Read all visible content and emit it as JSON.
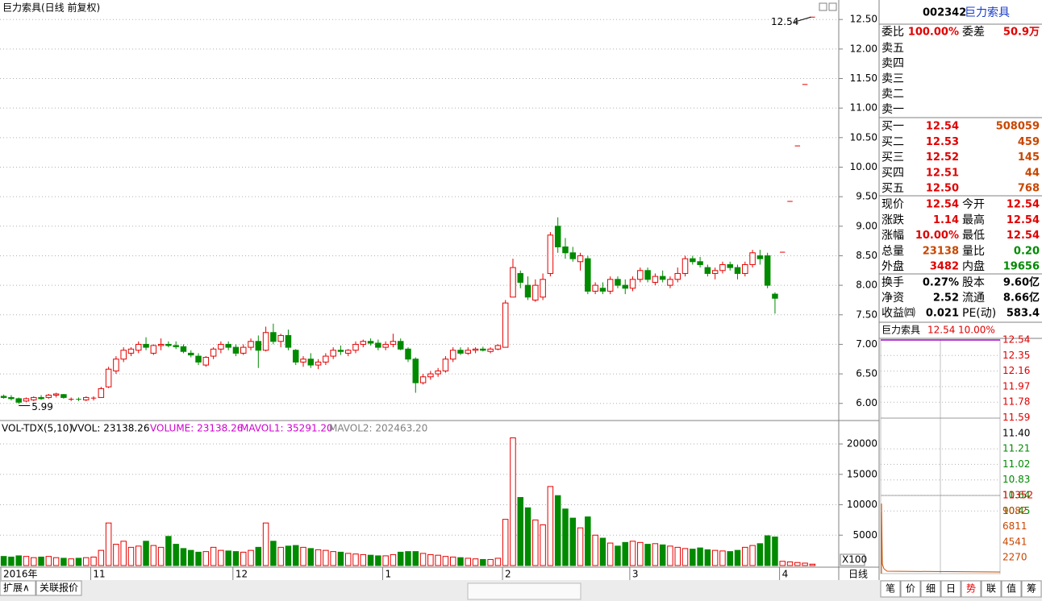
{
  "header": {
    "title": "巨力索具(日线 前复权)"
  },
  "price_chart": {
    "type": "candlestick",
    "up_color": "#e60000",
    "down_color": "#008a00",
    "ylim": [
      5.71,
      12.83
    ],
    "yticks": [
      {
        "value": 6,
        "label": "6.00"
      },
      {
        "value": 6.5,
        "label": "6.50"
      },
      {
        "value": 7,
        "label": "7.00"
      },
      {
        "value": 7.5,
        "label": "7.50"
      },
      {
        "value": 8,
        "label": "8.00"
      },
      {
        "value": 8.5,
        "label": "8.50"
      },
      {
        "value": 9,
        "label": "9.00"
      },
      {
        "value": 9.5,
        "label": "9.50"
      },
      {
        "value": 10,
        "label": "10.00"
      },
      {
        "value": 10.5,
        "label": "10.50"
      },
      {
        "value": 11,
        "label": "11.00"
      },
      {
        "value": 11.5,
        "label": "11.50"
      },
      {
        "value": 12,
        "label": "12.00"
      },
      {
        "value": 12.5,
        "label": "12.50"
      }
    ],
    "grid": true,
    "max_label": "12.54",
    "min_label": "5.99",
    "categories": [
      "2016年",
      null,
      null,
      null,
      null,
      null,
      null,
      null,
      null,
      null,
      null,
      null,
      "11",
      null,
      null,
      null,
      null,
      null,
      null,
      null,
      null,
      null,
      null,
      null,
      null,
      null,
      null,
      null,
      null,
      null,
      null,
      "12",
      null,
      null,
      null,
      null,
      null,
      null,
      null,
      null,
      null,
      null,
      null,
      null,
      null,
      null,
      null,
      null,
      null,
      null,
      null,
      "1",
      null,
      null,
      null,
      null,
      null,
      null,
      null,
      null,
      null,
      null,
      null,
      null,
      null,
      null,
      null,
      "2",
      null,
      null,
      null,
      null,
      null,
      null,
      null,
      null,
      null,
      null,
      null,
      null,
      null,
      null,
      null,
      null,
      "3",
      null,
      null,
      null,
      null,
      null,
      null,
      null,
      null,
      null,
      null,
      null,
      null,
      null,
      null,
      null,
      null,
      null,
      null,
      null,
      "4",
      null,
      null,
      null,
      null
    ],
    "candles": [
      [
        6.12,
        6.15,
        6.08,
        6.1
      ],
      [
        6.1,
        6.14,
        6.05,
        6.08
      ],
      [
        6.08,
        6.1,
        5.99,
        6.02
      ],
      [
        6.04,
        6.1,
        6.02,
        6.08
      ],
      [
        6.06,
        6.12,
        6.04,
        6.1
      ],
      [
        6.1,
        6.14,
        6.06,
        6.08
      ],
      [
        6.1,
        6.16,
        6.08,
        6.14
      ],
      [
        6.14,
        6.18,
        6.1,
        6.16
      ],
      [
        6.15,
        6.16,
        6.08,
        6.1
      ],
      [
        6.06,
        6.1,
        6.04,
        6.07
      ],
      [
        6.07,
        6.1,
        6.04,
        6.06
      ],
      [
        6.06,
        6.12,
        6.04,
        6.1
      ],
      [
        6.08,
        6.12,
        6.05,
        6.09
      ],
      [
        6.1,
        6.28,
        6.1,
        6.25
      ],
      [
        6.28,
        6.62,
        6.26,
        6.58
      ],
      [
        6.55,
        6.8,
        6.5,
        6.75
      ],
      [
        6.75,
        6.95,
        6.7,
        6.9
      ],
      [
        6.85,
        6.95,
        6.8,
        6.92
      ],
      [
        6.9,
        7.05,
        6.85,
        7.0
      ],
      [
        7.0,
        7.12,
        6.9,
        6.95
      ],
      [
        6.85,
        7.0,
        6.82,
        6.98
      ],
      [
        6.98,
        7.1,
        6.9,
        7.0
      ],
      [
        7.0,
        7.05,
        6.95,
        6.98
      ],
      [
        6.98,
        7.05,
        6.92,
        6.96
      ],
      [
        6.96,
        7.0,
        6.85,
        6.88
      ],
      [
        6.85,
        6.9,
        6.78,
        6.82
      ],
      [
        6.8,
        6.85,
        6.65,
        6.7
      ],
      [
        6.65,
        6.8,
        6.62,
        6.78
      ],
      [
        6.8,
        6.95,
        6.75,
        6.92
      ],
      [
        6.92,
        7.05,
        6.85,
        7.0
      ],
      [
        7.0,
        7.05,
        6.9,
        6.95
      ],
      [
        6.95,
        7.0,
        6.8,
        6.85
      ],
      [
        6.85,
        7.0,
        6.82,
        6.95
      ],
      [
        6.95,
        7.1,
        6.9,
        7.05
      ],
      [
        7.05,
        7.15,
        6.6,
        6.9
      ],
      [
        6.9,
        7.3,
        6.88,
        7.2
      ],
      [
        7.2,
        7.35,
        7.0,
        7.05
      ],
      [
        7.05,
        7.18,
        6.95,
        7.15
      ],
      [
        7.15,
        7.25,
        6.9,
        6.95
      ],
      [
        6.9,
        6.92,
        6.65,
        6.7
      ],
      [
        6.7,
        6.8,
        6.62,
        6.75
      ],
      [
        6.75,
        6.85,
        6.6,
        6.65
      ],
      [
        6.65,
        6.75,
        6.58,
        6.7
      ],
      [
        6.7,
        6.85,
        6.65,
        6.8
      ],
      [
        6.8,
        6.95,
        6.75,
        6.9
      ],
      [
        6.9,
        6.98,
        6.82,
        6.88
      ],
      [
        6.85,
        6.92,
        6.8,
        6.9
      ],
      [
        6.9,
        7.05,
        6.85,
        7.0
      ],
      [
        7.0,
        7.08,
        6.95,
        7.05
      ],
      [
        7.05,
        7.1,
        6.98,
        7.02
      ],
      [
        7.02,
        7.08,
        6.9,
        6.95
      ],
      [
        6.95,
        7.05,
        6.9,
        7.0
      ],
      [
        7.0,
        7.18,
        6.95,
        7.05
      ],
      [
        7.05,
        7.1,
        6.9,
        6.92
      ],
      [
        6.92,
        6.95,
        6.7,
        6.75
      ],
      [
        6.75,
        6.78,
        6.18,
        6.35
      ],
      [
        6.35,
        6.5,
        6.32,
        6.45
      ],
      [
        6.45,
        6.55,
        6.4,
        6.5
      ],
      [
        6.5,
        6.6,
        6.45,
        6.55
      ],
      [
        6.55,
        6.8,
        6.52,
        6.75
      ],
      [
        6.75,
        6.95,
        6.7,
        6.9
      ],
      [
        6.9,
        6.95,
        6.82,
        6.85
      ],
      [
        6.85,
        6.95,
        6.82,
        6.9
      ],
      [
        6.9,
        6.95,
        6.85,
        6.92
      ],
      [
        6.92,
        6.96,
        6.88,
        6.9
      ],
      [
        6.88,
        6.95,
        6.85,
        6.92
      ],
      [
        6.92,
        7.0,
        6.9,
        6.98
      ],
      [
        6.95,
        7.75,
        6.95,
        7.7
      ],
      [
        7.8,
        8.45,
        7.8,
        8.3
      ],
      [
        8.2,
        8.25,
        7.95,
        8.05
      ],
      [
        8.0,
        8.15,
        7.75,
        7.8
      ],
      [
        7.75,
        8.1,
        7.72,
        8.0
      ],
      [
        7.8,
        8.2,
        7.75,
        8.1
      ],
      [
        8.2,
        8.9,
        8.15,
        8.85
      ],
      [
        9.0,
        9.15,
        8.55,
        8.65
      ],
      [
        8.65,
        8.8,
        8.45,
        8.55
      ],
      [
        8.55,
        8.65,
        8.4,
        8.45
      ],
      [
        8.4,
        8.55,
        8.25,
        8.5
      ],
      [
        8.45,
        8.5,
        7.85,
        7.9
      ],
      [
        7.9,
        8.05,
        7.85,
        8.0
      ],
      [
        7.95,
        8.05,
        7.85,
        7.9
      ],
      [
        7.9,
        8.15,
        7.85,
        8.1
      ],
      [
        8.1,
        8.15,
        7.95,
        8.0
      ],
      [
        8.0,
        8.1,
        7.85,
        7.95
      ],
      [
        7.95,
        8.15,
        7.9,
        8.1
      ],
      [
        8.1,
        8.3,
        8.05,
        8.25
      ],
      [
        8.25,
        8.3,
        8.05,
        8.1
      ],
      [
        8.05,
        8.2,
        8.0,
        8.15
      ],
      [
        8.15,
        8.25,
        8.05,
        8.1
      ],
      [
        8.0,
        8.15,
        7.95,
        8.1
      ],
      [
        8.1,
        8.3,
        8.05,
        8.2
      ],
      [
        8.2,
        8.5,
        8.15,
        8.45
      ],
      [
        8.45,
        8.5,
        8.35,
        8.4
      ],
      [
        8.4,
        8.48,
        8.3,
        8.35
      ],
      [
        8.3,
        8.35,
        8.15,
        8.2
      ],
      [
        8.2,
        8.3,
        8.1,
        8.25
      ],
      [
        8.25,
        8.4,
        8.2,
        8.35
      ],
      [
        8.35,
        8.4,
        8.25,
        8.3
      ],
      [
        8.3,
        8.35,
        8.1,
        8.2
      ],
      [
        8.2,
        8.4,
        8.15,
        8.35
      ],
      [
        8.35,
        8.6,
        8.3,
        8.55
      ],
      [
        8.5,
        8.6,
        8.35,
        8.45
      ],
      [
        8.5,
        8.55,
        7.95,
        8.0
      ],
      [
        7.85,
        7.88,
        7.52,
        7.78
      ],
      [
        8.56,
        8.56,
        8.56,
        8.56
      ],
      [
        9.42,
        9.42,
        9.42,
        9.42
      ],
      [
        10.36,
        10.36,
        10.36,
        10.36
      ],
      [
        11.4,
        11.4,
        11.4,
        11.4
      ],
      [
        12.54,
        12.54,
        12.54,
        12.54
      ]
    ]
  },
  "volume_chart": {
    "type": "bar",
    "labels": [
      "VOL-TDX(5,10)",
      "VVOL: 23138.26",
      "VOLUME: 23138.26",
      "MAVOL1: 35291.20",
      "MAVOL2: 202463.20"
    ],
    "unit": "X100",
    "ylim": [
      0,
      23850
    ],
    "yticks": [
      5000,
      10000,
      15000,
      20000
    ],
    "values": [
      1500,
      1400,
      1600,
      1500,
      1300,
      1400,
      1500,
      1300,
      1200,
      1100,
      1200,
      1300,
      1400,
      2500,
      7000,
      3500,
      4000,
      3000,
      3200,
      4000,
      3300,
      3000,
      4800,
      3500,
      2800,
      2500,
      2200,
      2300,
      3000,
      2500,
      2400,
      2300,
      2200,
      2500,
      3000,
      7000,
      4000,
      3000,
      3200,
      3300,
      3000,
      2800,
      2600,
      2500,
      2300,
      2200,
      2000,
      1900,
      1800,
      1700,
      1600,
      1600,
      1800,
      2200,
      2300,
      2300,
      2000,
      1800,
      1700,
      1500,
      1400,
      1300,
      1200,
      1100,
      1000,
      1000,
      1200,
      7600,
      21000,
      11200,
      9500,
      7500,
      6700,
      13000,
      11500,
      9300,
      7800,
      6200,
      8000,
      5000,
      4500,
      3700,
      3200,
      3800,
      4000,
      3800,
      3500,
      3600,
      3400,
      3200,
      3000,
      2800,
      2700,
      2900,
      2600,
      2500,
      2400,
      2300,
      2500,
      3000,
      3300,
      3600,
      4900,
      4700,
      700,
      600,
      500,
      400,
      231.38
    ]
  },
  "quote": {
    "code": "002342",
    "name": "巨力索具",
    "ratio": [
      "委比",
      "100.00%",
      "委差",
      "50.9万"
    ],
    "sell": [
      "卖五",
      "卖四",
      "卖三",
      "卖二",
      "卖一"
    ],
    "buy": [
      [
        "买一",
        "12.54",
        "508059"
      ],
      [
        "买二",
        "12.53",
        "459"
      ],
      [
        "买三",
        "12.52",
        "145"
      ],
      [
        "买四",
        "12.51",
        "44"
      ],
      [
        "买五",
        "12.50",
        "768"
      ]
    ],
    "stats": [
      [
        "现价",
        "12.54",
        "今开",
        "12.54"
      ],
      [
        "涨跌",
        "1.14",
        "最高",
        "12.54"
      ],
      [
        "涨幅",
        "10.00%",
        "最低",
        "12.54"
      ],
      [
        "总量",
        "23138",
        "量比",
        "0.20"
      ],
      [
        "外盘",
        "3482",
        "内盘",
        "19656"
      ]
    ],
    "fundamentals": [
      [
        "换手",
        "0.27%",
        "股本",
        "9.60亿"
      ],
      [
        "净资",
        "2.52",
        "流通",
        "8.66亿"
      ],
      [
        "收益㈣",
        "0.021",
        "PE(动)",
        "583.4"
      ]
    ]
  },
  "intraday": {
    "name": "巨力索具",
    "price": "12.54",
    "change": "10.00%",
    "price_ticks": [
      "12.54",
      "12.35",
      "12.16",
      "11.97",
      "11.78",
      "11.59",
      "11.40",
      "11.21",
      "11.02",
      "10.83",
      "10.64",
      "10.45"
    ],
    "volume_ticks": [
      "11352",
      "9082",
      "6811",
      "4541",
      "2270"
    ]
  },
  "tabs": {
    "left": [
      "扩展∧",
      "关联报价"
    ],
    "period": "日线",
    "right": [
      "笔",
      "价",
      "细",
      "日",
      "势",
      "联",
      "值",
      "筹"
    ]
  }
}
